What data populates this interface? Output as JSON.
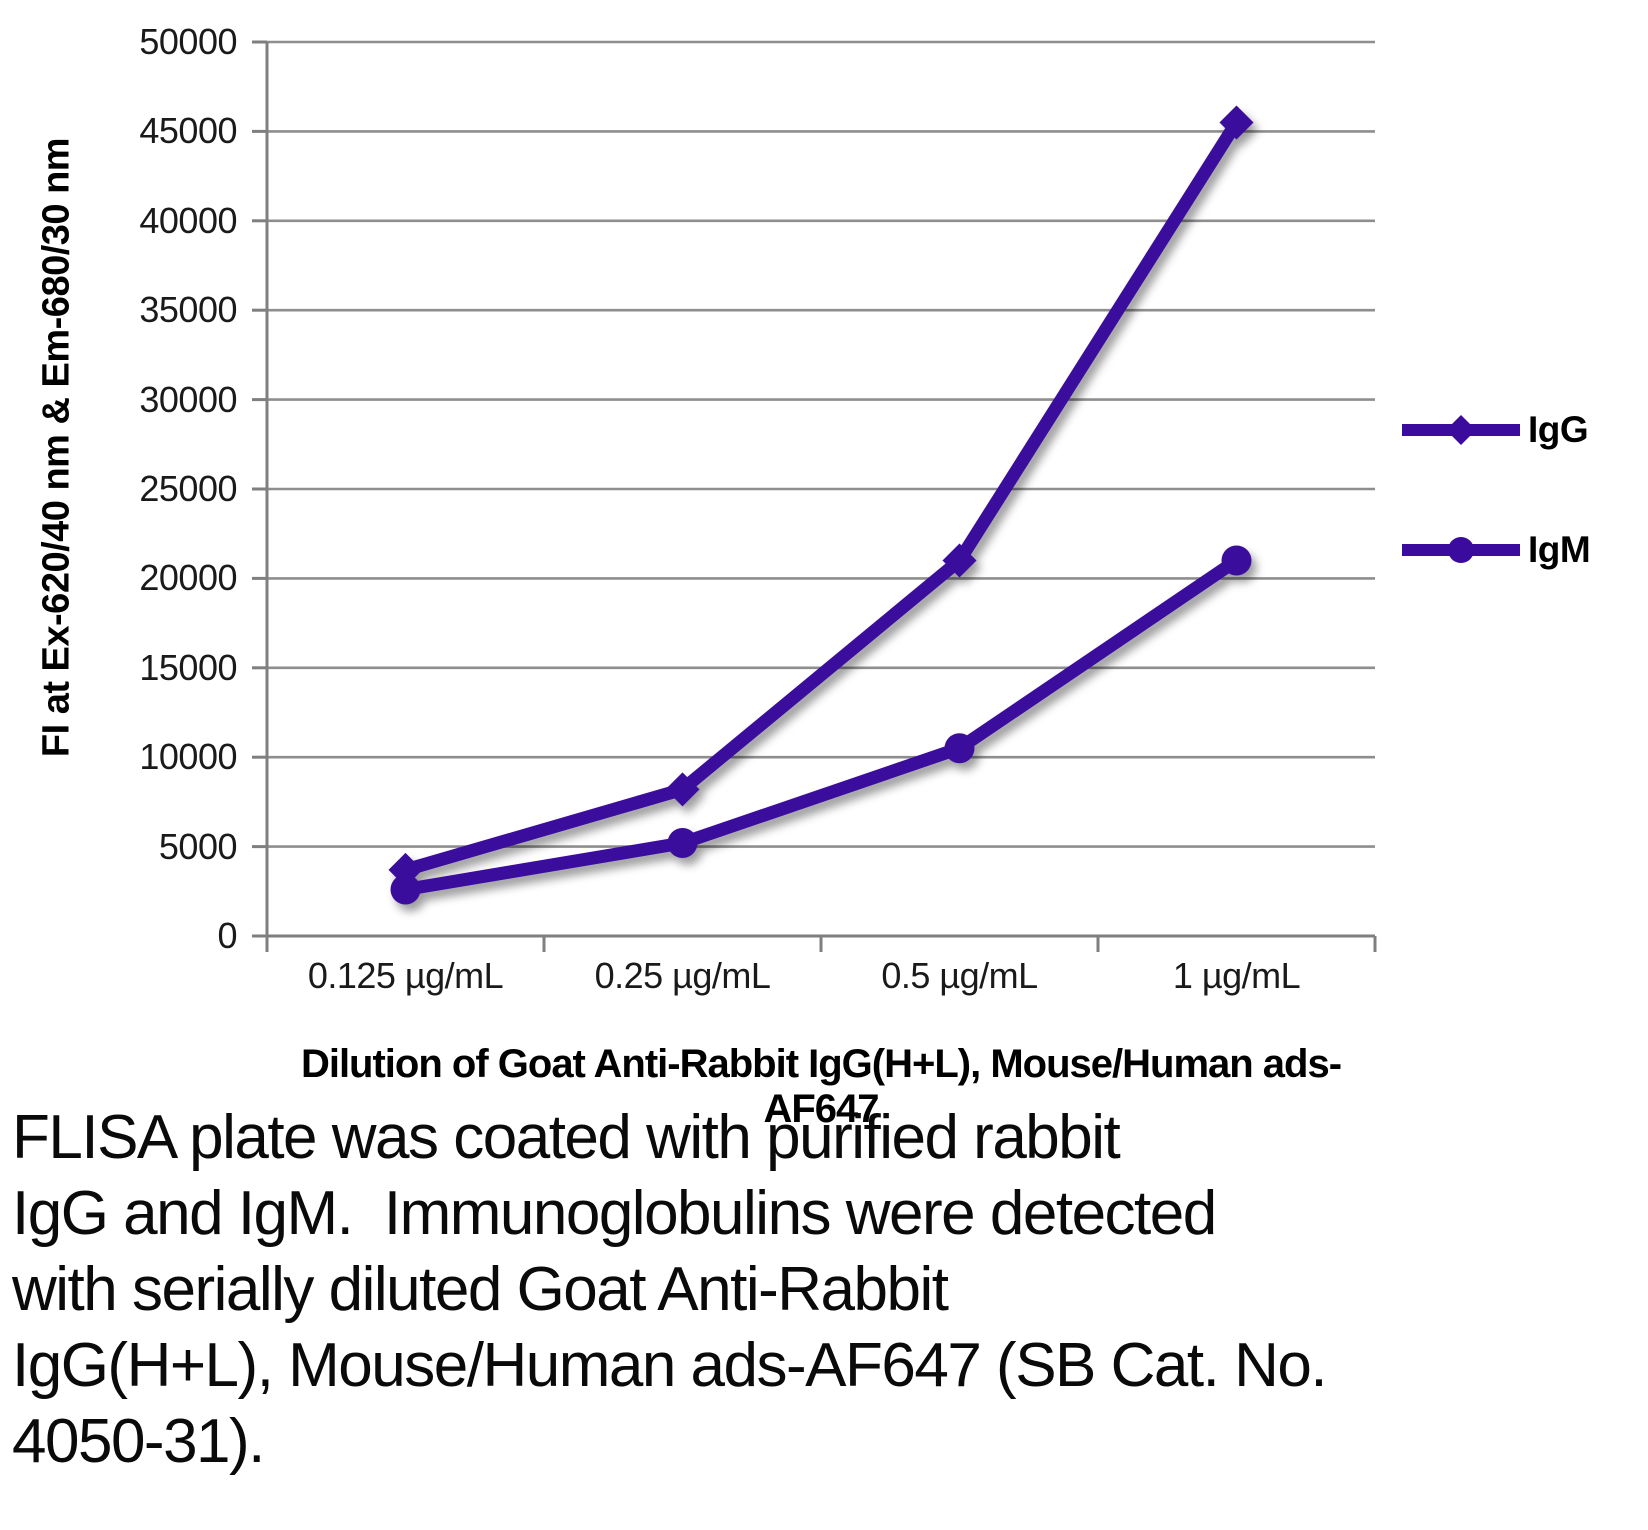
{
  "chart_data": {
    "type": "line",
    "title": "",
    "xlabel": "Dilution of Goat Anti-Rabbit IgG(H+L), Mouse/Human ads-AF647",
    "ylabel": "FI at Ex-620/40 nm & Em-680/30 nm",
    "categories": [
      "0.125 µg/mL",
      "0.25 µg/mL",
      "0.5 µg/mL",
      "1 µg/mL"
    ],
    "series": [
      {
        "name": "IgG",
        "marker": "diamond",
        "values": [
          3700,
          8200,
          21000,
          45500
        ]
      },
      {
        "name": "IgM",
        "marker": "circle",
        "values": [
          2600,
          5200,
          10500,
          21000
        ]
      }
    ],
    "ylim": [
      0,
      50000
    ],
    "ytick_step": 5000,
    "yticks": [
      "50000",
      "45000",
      "40000",
      "35000",
      "30000",
      "25000",
      "20000",
      "15000",
      "10000",
      "5000",
      "0"
    ],
    "grid": "horizontal",
    "legend_position": "right-middle",
    "colors": {
      "series": "#3A0B9D",
      "gridline": "#8E8E8E",
      "axis": "#7F7F7F",
      "text": "#000000"
    }
  },
  "caption": {
    "lines": [
      "FLISA plate was coated with purified rabbit",
      "IgG and IgM.  Immunoglobulins were detected",
      "with serially diluted Goat Anti-Rabbit",
      "IgG(H+L), Mouse/Human ads-AF647 (SB Cat. No.",
      "4050-31)."
    ]
  }
}
